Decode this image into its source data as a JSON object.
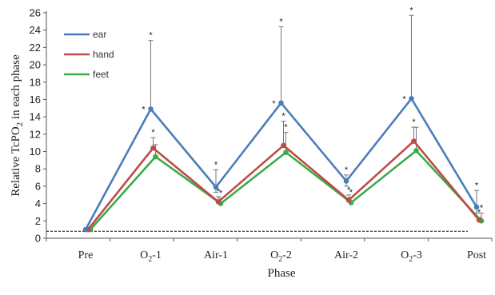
{
  "chart_data": {
    "type": "line",
    "xlabel": "Phase",
    "ylabel_parts": {
      "pre": "Relative TcPO",
      "sub": "2",
      "post": " in each phase"
    },
    "categories": [
      {
        "main": "Pre",
        "sub": "",
        "post": ""
      },
      {
        "main": "O",
        "sub": "2",
        "post": "-1"
      },
      {
        "main": "Air-1",
        "sub": "",
        "post": ""
      },
      {
        "main": "O",
        "sub": "2",
        "post": "-2"
      },
      {
        "main": "Air-2",
        "sub": "",
        "post": ""
      },
      {
        "main": "O",
        "sub": "2",
        "post": "-3"
      },
      {
        "main": "Post",
        "sub": "",
        "post": ""
      }
    ],
    "ylim": [
      0,
      26
    ],
    "yticks": [
      0,
      2,
      4,
      6,
      8,
      10,
      12,
      14,
      16,
      18,
      20,
      22,
      24,
      26
    ],
    "reference_line": 0.8,
    "series": [
      {
        "name": "ear",
        "color": "#4a7ebb",
        "values": [
          1.0,
          14.9,
          5.9,
          15.6,
          6.6,
          16.1,
          3.6
        ],
        "error_upper": [
          null,
          22.8,
          7.9,
          24.4,
          7.3,
          25.7,
          5.5
        ],
        "error_lower": [
          null,
          null,
          5.3,
          null,
          6.0,
          null,
          2.9
        ]
      },
      {
        "name": "hand",
        "color": "#be4b48",
        "values": [
          1.0,
          10.4,
          4.2,
          10.7,
          4.4,
          11.2,
          2.1
        ],
        "error_upper": [
          null,
          11.6,
          4.8,
          13.5,
          5.0,
          12.8,
          2.4
        ],
        "error_lower": [
          null,
          null,
          null,
          null,
          null,
          null,
          null
        ]
      },
      {
        "name": "feet",
        "color": "#3cab4a",
        "values": [
          1.0,
          9.4,
          4.0,
          9.9,
          4.1,
          10.1,
          2.0
        ],
        "error_upper": [
          null,
          10.8,
          4.6,
          12.2,
          4.7,
          12.8,
          2.9
        ],
        "error_lower": [
          null,
          null,
          null,
          null,
          null,
          null,
          null
        ]
      }
    ],
    "significance_marker": "*",
    "significance": [
      {
        "series": "ear",
        "points": [
          1,
          2,
          3,
          4,
          5,
          6
        ]
      },
      {
        "series": "hand",
        "points": [
          1,
          2,
          3,
          4,
          5,
          6
        ]
      },
      {
        "series": "feet",
        "points": [
          2,
          3,
          4,
          6
        ]
      }
    ],
    "legend_position": "top-left",
    "grid": false
  }
}
